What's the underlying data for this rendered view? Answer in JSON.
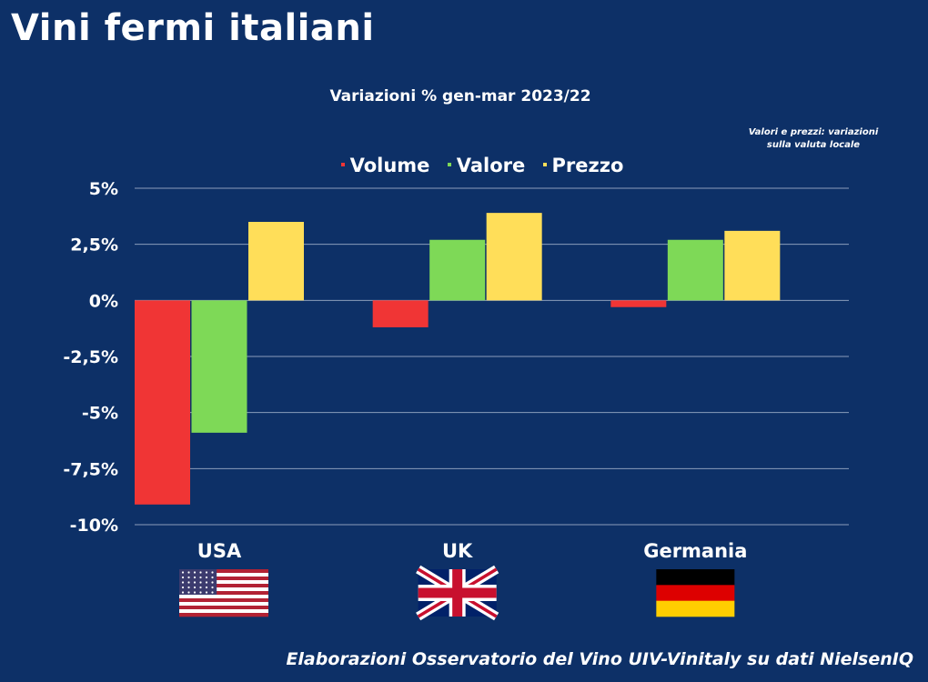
{
  "header": {
    "title": "Vini fermi italiani",
    "subtitle": "Variazioni % gen-mar 2023/22",
    "note_line1": "Valori e prezzi: variazioni",
    "note_line2": "sulla valuta locale",
    "source": "Elaborazioni Osservatorio del Vino UIV-Vinitaly su dati NielsenIQ"
  },
  "chart_data": {
    "type": "bar",
    "categories": [
      "USA",
      "UK",
      "Germania"
    ],
    "series": [
      {
        "name": "Volume",
        "color": "#f03535",
        "values": [
          -9.1,
          -1.2,
          -0.3
        ]
      },
      {
        "name": "Valore",
        "color": "#7ed957",
        "values": [
          -5.9,
          2.7,
          2.7
        ]
      },
      {
        "name": "Prezzo",
        "color": "#ffde59",
        "values": [
          3.5,
          3.9,
          3.1
        ]
      }
    ],
    "ylim": [
      -10,
      5
    ],
    "yticks": [
      5,
      2.5,
      0,
      -2.5,
      -5,
      -7.5,
      -10
    ],
    "ytick_labels": [
      "5%",
      "2,5%",
      "0%",
      "-2,5%",
      "-5%",
      "-7,5%",
      "-10%"
    ],
    "grid": true,
    "legend_position": "top",
    "flags": [
      "us-flag-icon",
      "uk-flag-icon",
      "germany-flag-icon"
    ]
  }
}
